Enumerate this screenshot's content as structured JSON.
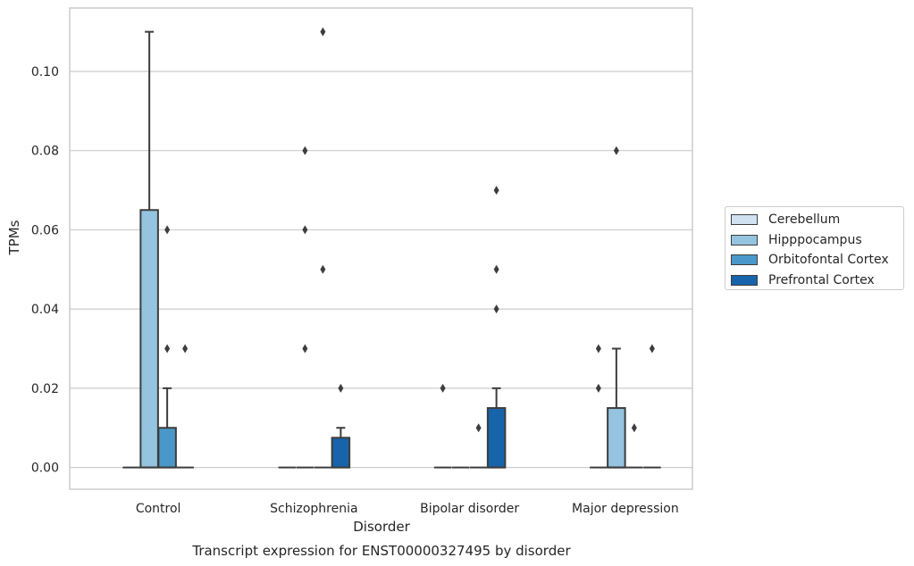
{
  "chart_data": {
    "type": "box",
    "title": "Transcript expression for ENST00000327495 by disorder",
    "xlabel": "Disorder",
    "ylabel": "TPMs",
    "ylim": [
      -0.0055,
      0.116
    ],
    "yticks": [
      0.0,
      0.02,
      0.04,
      0.06,
      0.08,
      0.1
    ],
    "ytick_labels": [
      "0.00",
      "0.02",
      "0.04",
      "0.06",
      "0.08",
      "0.10"
    ],
    "grid": "horizontal",
    "legend_position": "right",
    "categories": [
      "Control",
      "Schizophrenia",
      "Bipolar disorder",
      "Major depression"
    ],
    "series": [
      {
        "name": "Cerebellum",
        "color": "#d0e1f2",
        "boxes": [
          {
            "q1": 0,
            "median": 0,
            "q3": 0,
            "whisker_low": 0,
            "whisker_high": 0,
            "outliers": []
          },
          {
            "q1": 0,
            "median": 0,
            "q3": 0,
            "whisker_low": 0,
            "whisker_high": 0,
            "outliers": []
          },
          {
            "q1": 0,
            "median": 0,
            "q3": 0,
            "whisker_low": 0,
            "whisker_high": 0,
            "outliers": [
              0.02
            ]
          },
          {
            "q1": 0,
            "median": 0,
            "q3": 0,
            "whisker_low": 0,
            "whisker_high": 0,
            "outliers": [
              0.02,
              0.03
            ]
          }
        ]
      },
      {
        "name": "Hipppocampus",
        "color": "#94c4df",
        "boxes": [
          {
            "q1": 0,
            "median": 0,
            "q3": 0.065,
            "whisker_low": 0,
            "whisker_high": 0.11,
            "outliers": []
          },
          {
            "q1": 0,
            "median": 0,
            "q3": 0,
            "whisker_low": 0,
            "whisker_high": 0,
            "outliers": [
              0.03,
              0.06,
              0.08
            ]
          },
          {
            "q1": 0,
            "median": 0,
            "q3": 0,
            "whisker_low": 0,
            "whisker_high": 0,
            "outliers": []
          },
          {
            "q1": 0,
            "median": 0,
            "q3": 0.015,
            "whisker_low": 0,
            "whisker_high": 0.03,
            "outliers": [
              0.08
            ]
          }
        ]
      },
      {
        "name": "Orbitofontal Cortex",
        "color": "#4a98c9",
        "boxes": [
          {
            "q1": 0,
            "median": 0,
            "q3": 0.01,
            "whisker_low": 0,
            "whisker_high": 0.02,
            "outliers": [
              0.03,
              0.06
            ]
          },
          {
            "q1": 0,
            "median": 0,
            "q3": 0,
            "whisker_low": 0,
            "whisker_high": 0,
            "outliers": [
              0.05,
              0.11
            ]
          },
          {
            "q1": 0,
            "median": 0,
            "q3": 0,
            "whisker_low": 0,
            "whisker_high": 0,
            "outliers": [
              0.01
            ]
          },
          {
            "q1": 0,
            "median": 0,
            "q3": 0,
            "whisker_low": 0,
            "whisker_high": 0,
            "outliers": [
              0.01
            ]
          }
        ]
      },
      {
        "name": "Prefrontal Cortex",
        "color": "#1764ab",
        "boxes": [
          {
            "q1": 0,
            "median": 0,
            "q3": 0,
            "whisker_low": 0,
            "whisker_high": 0,
            "outliers": [
              0.03
            ]
          },
          {
            "q1": 0,
            "median": 0,
            "q3": 0.0075,
            "whisker_low": 0,
            "whisker_high": 0.01,
            "outliers": [
              0.02
            ]
          },
          {
            "q1": 0,
            "median": 0,
            "q3": 0.015,
            "whisker_low": 0,
            "whisker_high": 0.02,
            "outliers": [
              0.04,
              0.05,
              0.07
            ]
          },
          {
            "q1": 0,
            "median": 0,
            "q3": 0,
            "whisker_low": 0,
            "whisker_high": 0,
            "outliers": [
              0.03
            ]
          }
        ]
      }
    ]
  }
}
